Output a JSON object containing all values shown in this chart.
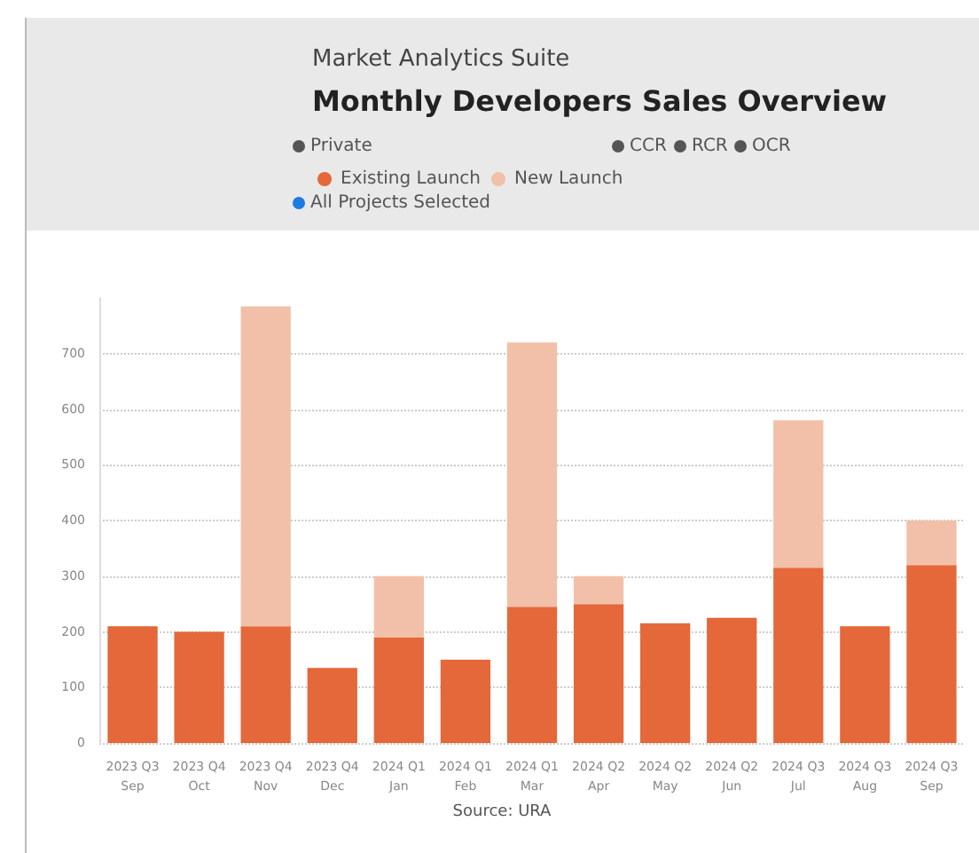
{
  "chart_data": {
    "type": "bar",
    "title": "Monthly Developers Sales Overview",
    "subtitle": "Market Analytics Suite",
    "categories": [
      "2023 Q3\nSep",
      "2023 Q4\nOct",
      "2023 Q4\nNov",
      "2023 Q4\nDec",
      "2024 Q1\nJan",
      "2024 Q1\nFeb",
      "2024 Q1\nMar",
      "2024 Q2\nApr",
      "2024 Q2\nMay",
      "2024 Q2\nJun",
      "2024 Q3\nJul",
      "2024 Q3\nAug",
      "2024 Q3\nSep"
    ],
    "series": [
      {
        "name": "Existing Launch",
        "color": "#e4683a",
        "values": [
          210,
          200,
          210,
          135,
          190,
          150,
          245,
          250,
          215,
          225,
          315,
          210,
          320
        ]
      },
      {
        "name": "New Launch",
        "color": "#f2c0a8",
        "values": [
          null,
          null,
          575,
          null,
          110,
          null,
          475,
          50,
          null,
          null,
          265,
          null,
          80
        ]
      }
    ],
    "stacked": true,
    "ylim": [
      0,
      800
    ],
    "yticks": [
      0,
      100,
      200,
      300,
      400,
      500,
      600,
      700
    ],
    "grid": "y",
    "legend": "top left",
    "annotations": [
      "Private",
      "CCR",
      "RCR",
      "OCR",
      "All Projects Selected",
      "Source: URA"
    ]
  }
}
